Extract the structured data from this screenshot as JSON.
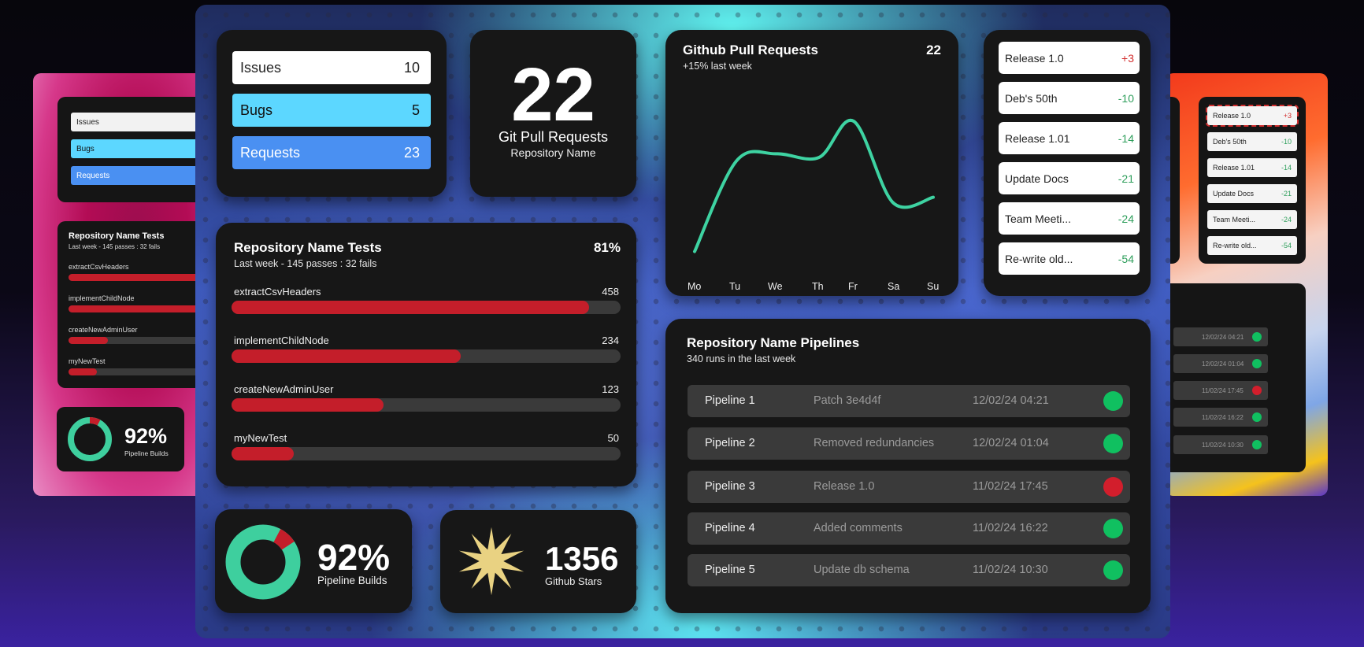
{
  "colors": {
    "card_bg": "#171717",
    "bar_red": "#c41e2a",
    "bar_track": "#3a3a3a",
    "issues_row": "#ffffff",
    "bugs_row": "#5cd7ff",
    "requests_row": "#4a90f2",
    "chart_line": "#3ed3a2",
    "status_green": "#10c060",
    "status_red": "#d21e2c",
    "donut_green": "#3ecf9e",
    "star_gold": "#e9d282",
    "positive_red": "#d32f2f",
    "negative_green": "#2e9e5b"
  },
  "counts": {
    "items": [
      {
        "label": "Issues",
        "value": "10"
      },
      {
        "label": "Bugs",
        "value": "5"
      },
      {
        "label": "Requests",
        "value": "23"
      }
    ]
  },
  "pull_requests_stat": {
    "value": "22",
    "label": "Git Pull Requests",
    "sublabel": "Repository Name"
  },
  "github_chart": {
    "title": "Github Pull Requests",
    "total": "22",
    "subtitle": "+15% last week",
    "days": [
      "Mo",
      "Tu",
      "We",
      "Th",
      "Fr",
      "Sa",
      "Su"
    ]
  },
  "chart_data": {
    "type": "line",
    "title": "Github Pull Requests",
    "x": [
      "Mo",
      "Tu",
      "We",
      "Th",
      "Fr",
      "Sa",
      "Su"
    ],
    "series": [
      {
        "values": [
          8,
          58,
          62,
          60,
          80,
          35,
          38
        ]
      }
    ],
    "ylim": [
      0,
      100
    ],
    "grid": false,
    "legend": "none"
  },
  "releases": [
    {
      "name": "Release 1.0",
      "delta": "+3",
      "positive": true
    },
    {
      "name": "Deb's 50th",
      "delta": "-10",
      "positive": false
    },
    {
      "name": "Release 1.01",
      "delta": "-14",
      "positive": false
    },
    {
      "name": "Update Docs",
      "delta": "-21",
      "positive": false
    },
    {
      "name": "Team Meeti...",
      "delta": "-24",
      "positive": false
    },
    {
      "name": "Re-write old...",
      "delta": "-54",
      "positive": false
    }
  ],
  "tests": {
    "title": "Repository Name Tests",
    "percent": "81%",
    "subtitle": "Last week - 145 passes : 32 fails",
    "items": [
      {
        "name": "extractCsvHeaders",
        "count": "458",
        "fraction": 0.92
      },
      {
        "name": "implementChildNode",
        "count": "234",
        "fraction": 0.59
      },
      {
        "name": "createNewAdminUser",
        "count": "123",
        "fraction": 0.39
      },
      {
        "name": "myNewTest",
        "count": "50",
        "fraction": 0.16
      }
    ]
  },
  "pipelines": {
    "title": "Repository Name Pipelines",
    "subtitle": "340 runs in the last week",
    "rows": [
      {
        "name": "Pipeline 1",
        "desc": "Patch 3e4d4f",
        "time": "12/02/24 04:21",
        "status": "success"
      },
      {
        "name": "Pipeline 2",
        "desc": "Removed redundancies",
        "time": "12/02/24 01:04",
        "status": "success"
      },
      {
        "name": "Pipeline 3",
        "desc": "Release 1.0",
        "time": "11/02/24 17:45",
        "status": "failed"
      },
      {
        "name": "Pipeline 4",
        "desc": "Added comments",
        "time": "11/02/24 16:22",
        "status": "success"
      },
      {
        "name": "Pipeline 5",
        "desc": "Update db schema",
        "time": "11/02/24 10:30",
        "status": "success"
      }
    ]
  },
  "builds": {
    "value": "92%",
    "label": "Pipeline Builds",
    "fraction": 0.92
  },
  "stars": {
    "value": "1356",
    "label": "Github Stars"
  }
}
